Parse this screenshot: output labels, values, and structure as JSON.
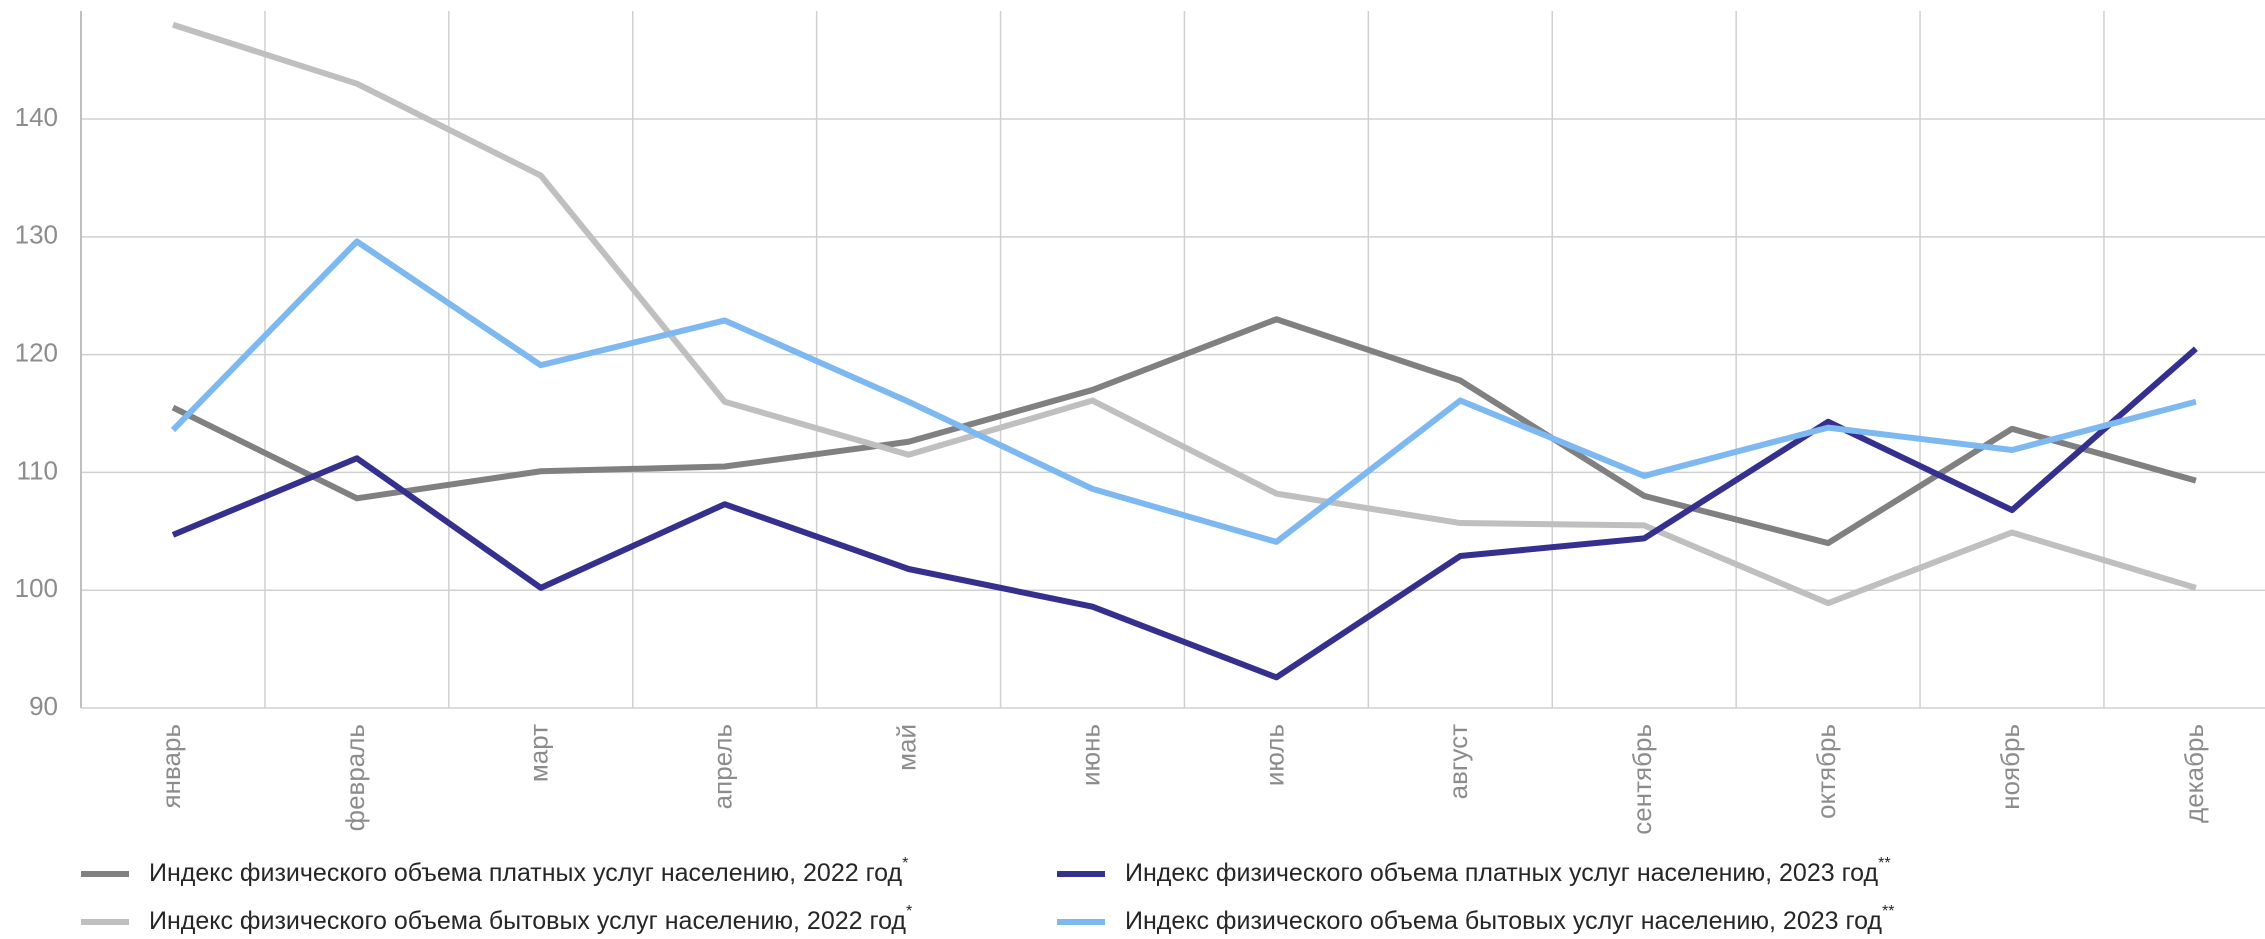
{
  "chart_data": {
    "type": "line",
    "categories": [
      "январь",
      "февраль",
      "март",
      "апрель",
      "май",
      "июнь",
      "июль",
      "август",
      "сентябрь",
      "октябрь",
      "ноябрь",
      "декабрь"
    ],
    "series": [
      {
        "name": "Индекс физического объема платных услуг населению, 2022 год",
        "footnote_mark": "*",
        "color": "#808080",
        "values": [
          115.5,
          107.8,
          110.1,
          110.5,
          112.6,
          117.0,
          123.0,
          117.8,
          108.0,
          104.0,
          113.7,
          109.3
        ]
      },
      {
        "name": "Индекс физического объема бытовых услуг населению, 2022 год",
        "footnote_mark": "*",
        "color": "#bfbfbf",
        "values": [
          148.0,
          143.0,
          135.2,
          116.0,
          111.5,
          116.1,
          108.2,
          105.7,
          105.5,
          98.9,
          104.9,
          100.2
        ]
      },
      {
        "name": "Индекс физического объема платных услуг населению, 2023 год",
        "footnote_mark": "**",
        "color": "#35308e",
        "values": [
          104.7,
          111.2,
          100.2,
          107.3,
          101.8,
          98.6,
          92.6,
          102.9,
          104.4,
          114.3,
          106.8,
          120.5
        ]
      },
      {
        "name": "Индекс физического объема бытовых услуг населению, 2023 год",
        "footnote_mark": "**",
        "color": "#7db8f0",
        "values": [
          113.6,
          129.6,
          119.1,
          122.9,
          116.0,
          108.6,
          104.1,
          116.1,
          109.7,
          113.8,
          111.9,
          116.0
        ]
      }
    ],
    "ylim": [
      90,
      149
    ],
    "yticks": [
      90,
      100,
      110,
      120,
      130,
      140
    ],
    "grid": true
  }
}
